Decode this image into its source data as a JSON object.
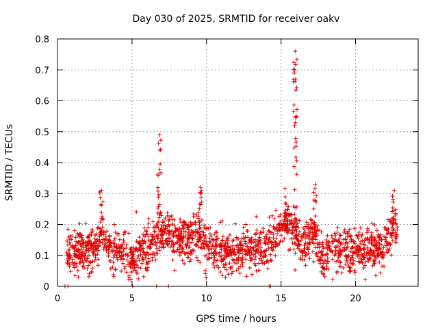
{
  "chart_data": {
    "type": "scatter",
    "title": "Day 030 of 2025, SRMTID for receiver oakv",
    "xlabel": "GPS time / hours",
    "ylabel": "SRMTID / TECUs",
    "xlim": [
      0,
      24.2
    ],
    "ylim": [
      0,
      0.8
    ],
    "xticks": [
      0,
      5,
      10,
      15,
      20
    ],
    "yticks": [
      0,
      0.1,
      0.2,
      0.3,
      0.4,
      0.5,
      0.6,
      0.7,
      0.8
    ],
    "xtick_labels": [
      "0",
      "5",
      "10",
      "15",
      "20"
    ],
    "ytick_labels": [
      "0",
      "0.1",
      "0.2",
      "0.3",
      "0.4",
      "0.5",
      "0.6",
      "0.7",
      "0.8"
    ],
    "grid": true,
    "marker": "plus",
    "color": "#e00000",
    "x_range": [
      0.6,
      22.8
    ],
    "spikes": [
      {
        "x": 6.85,
        "peak": 0.49
      },
      {
        "x": 9.6,
        "peak": 0.32
      },
      {
        "x": 15.95,
        "peak": 0.76
      },
      {
        "x": 17.3,
        "peak": 0.33
      },
      {
        "x": 2.95,
        "peak": 0.31
      },
      {
        "x": 22.6,
        "peak": 0.31
      }
    ],
    "zero_points": [
      0.5,
      0.7,
      5.05,
      6.65,
      7.45,
      14.2,
      14.3
    ],
    "n_points": 1800
  }
}
